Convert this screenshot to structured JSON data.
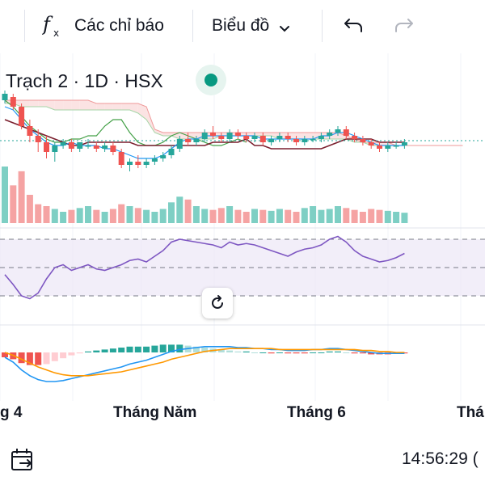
{
  "toolbar": {
    "indicators_label": "Các chỉ báo",
    "chart_type_label": "Biểu đồ",
    "icons": [
      "fx-icon",
      "chevron-down-icon",
      "undo-icon",
      "redo-icon"
    ]
  },
  "legend": {
    "symbol_text": "Trạch 2 · 1D · HSX",
    "status_color": "#089981"
  },
  "x_axis": {
    "labels": [
      "g 4",
      "Tháng Năm",
      "Tháng 6",
      "Thá"
    ]
  },
  "bottom": {
    "time_text": "14:56:29 (",
    "icons": [
      "calendar-arrow-icon"
    ]
  },
  "colors": {
    "up": "#26a69a",
    "down": "#ef5350",
    "rsi": "#7e57c2",
    "macd": "#2196f3",
    "signal": "#ff9800",
    "kijun": "#7b1f2e",
    "chikou": "#43a047",
    "tenkan": "#2196f3"
  },
  "chart_data": [
    {
      "type": "candlestick",
      "title": "",
      "candles": [
        [
          58,
          61,
          57,
          60
        ],
        [
          59,
          60,
          55,
          56
        ],
        [
          56,
          57,
          49,
          50
        ],
        [
          50,
          52,
          45,
          47
        ],
        [
          47,
          49,
          42,
          45
        ],
        [
          45,
          47,
          40,
          42
        ],
        [
          42,
          45,
          39,
          44
        ],
        [
          44,
          46,
          43,
          45
        ],
        [
          45,
          46,
          42,
          43
        ],
        [
          43,
          45,
          42,
          45
        ],
        [
          44,
          46,
          43,
          44
        ],
        [
          44,
          45,
          42,
          43
        ],
        [
          43,
          45,
          42,
          44
        ],
        [
          44,
          45,
          41,
          42
        ],
        [
          42,
          43,
          37,
          38
        ],
        [
          38,
          40,
          36,
          39
        ],
        [
          39,
          41,
          37,
          38
        ],
        [
          38,
          40,
          37,
          39
        ],
        [
          39,
          41,
          38,
          40
        ],
        [
          40,
          42,
          39,
          41
        ],
        [
          41,
          44,
          40,
          43
        ],
        [
          43,
          47,
          42,
          46
        ],
        [
          46,
          48,
          44,
          45
        ],
        [
          45,
          47,
          44,
          46
        ],
        [
          46,
          49,
          45,
          48
        ],
        [
          48,
          50,
          46,
          47
        ],
        [
          47,
          48,
          45,
          46
        ],
        [
          46,
          49,
          45,
          48
        ],
        [
          48,
          49,
          46,
          47
        ],
        [
          47,
          48,
          45,
          46
        ],
        [
          46,
          48,
          45,
          47
        ],
        [
          47,
          48,
          44,
          45
        ],
        [
          45,
          47,
          44,
          46
        ],
        [
          46,
          48,
          45,
          47
        ],
        [
          47,
          48,
          45,
          46
        ],
        [
          46,
          47,
          44,
          45
        ],
        [
          45,
          47,
          44,
          46
        ],
        [
          46,
          47,
          45,
          46
        ],
        [
          46,
          48,
          45,
          47
        ],
        [
          47,
          49,
          46,
          48
        ],
        [
          48,
          50,
          47,
          49
        ],
        [
          49,
          50,
          46,
          47
        ],
        [
          47,
          48,
          45,
          46
        ],
        [
          46,
          47,
          44,
          45
        ],
        [
          45,
          46,
          43,
          44
        ],
        [
          44,
          45,
          42,
          43
        ],
        [
          43,
          45,
          42,
          44
        ],
        [
          44,
          45,
          43,
          44
        ],
        [
          44,
          46,
          43,
          45
        ]
      ],
      "volume": [
        60,
        40,
        55,
        30,
        20,
        18,
        15,
        12,
        14,
        16,
        18,
        14,
        12,
        15,
        20,
        18,
        16,
        14,
        12,
        15,
        22,
        28,
        25,
        18,
        15,
        14,
        16,
        18,
        14,
        12,
        15,
        14,
        13,
        15,
        14,
        12,
        16,
        18,
        14,
        15,
        18,
        16,
        14,
        12,
        15,
        14,
        13,
        12,
        11
      ],
      "rsi": [
        45,
        38,
        30,
        28,
        32,
        42,
        50,
        52,
        48,
        50,
        52,
        49,
        48,
        50,
        52,
        55,
        56,
        54,
        58,
        62,
        68,
        70,
        69,
        68,
        67,
        66,
        64,
        68,
        66,
        67,
        66,
        64,
        62,
        60,
        58,
        61,
        63,
        64,
        66,
        70,
        72,
        68,
        62,
        58,
        56,
        54,
        55,
        57,
        60
      ],
      "macd": {
        "macd": [
          -0.5,
          -1,
          -1.8,
          -2.4,
          -2.8,
          -3,
          -3,
          -2.9,
          -2.7,
          -2.5,
          -2.3,
          -2.1,
          -1.9,
          -1.7,
          -1.5,
          -1.2,
          -1,
          -0.8,
          -0.5,
          -0.2,
          0.1,
          0.3,
          0.4,
          0.5,
          0.6,
          0.6,
          0.6,
          0.6,
          0.5,
          0.5,
          0.4,
          0.4,
          0.3,
          0.3,
          0.2,
          0.2,
          0.2,
          0.3,
          0.3,
          0.4,
          0.4,
          0.3,
          0.2,
          0.1,
          0,
          -0.1,
          -0.1,
          -0.1,
          -0.1
        ],
        "signal": [
          0,
          -0.3,
          -0.7,
          -1.1,
          -1.5,
          -1.8,
          -2.1,
          -2.3,
          -2.4,
          -2.4,
          -2.4,
          -2.3,
          -2.2,
          -2.1,
          -2,
          -1.8,
          -1.6,
          -1.4,
          -1.2,
          -1,
          -0.7,
          -0.5,
          -0.3,
          -0.1,
          0.1,
          0.2,
          0.3,
          0.4,
          0.4,
          0.4,
          0.4,
          0.4,
          0.4,
          0.3,
          0.3,
          0.3,
          0.3,
          0.3,
          0.3,
          0.3,
          0.3,
          0.3,
          0.3,
          0.2,
          0.2,
          0.1,
          0.1,
          0,
          0
        ],
        "histogram": [
          -0.5,
          -0.7,
          -1.1,
          -1.3,
          -1.3,
          -1.2,
          -0.9,
          -0.6,
          -0.3,
          -0.1,
          0.1,
          0.2,
          0.3,
          0.4,
          0.5,
          0.6,
          0.6,
          0.6,
          0.7,
          0.8,
          0.8,
          0.8,
          0.7,
          0.6,
          0.5,
          0.4,
          0.3,
          0.2,
          0.1,
          0.1,
          0,
          0,
          -0.1,
          0,
          -0.1,
          -0.1,
          -0.1,
          0,
          0,
          0.1,
          0.1,
          0,
          -0.1,
          -0.1,
          -0.2,
          -0.2,
          -0.2,
          -0.1,
          -0.1
        ]
      },
      "ichimoku": {
        "tenkan": [
          56,
          55,
          52,
          49,
          47,
          45,
          44,
          44,
          45,
          44,
          44,
          44,
          43,
          43,
          42,
          41,
          40,
          40,
          40,
          41,
          43,
          45,
          46,
          46,
          47,
          47,
          47,
          47,
          47,
          47,
          47,
          46,
          46,
          46,
          46,
          46,
          46,
          46,
          47,
          47,
          48,
          48,
          47,
          46,
          45,
          44,
          44,
          44,
          44
        ],
        "kijun": [
          52,
          51,
          50,
          49,
          48,
          47,
          46,
          45,
          44,
          44,
          45,
          45,
          45,
          45,
          45,
          45,
          44,
          44,
          44,
          44,
          44,
          44,
          44,
          44,
          44,
          45,
          45,
          45,
          45,
          46,
          44,
          44,
          43,
          43,
          43,
          43,
          43,
          43,
          43,
          44,
          45,
          46,
          46,
          46,
          46,
          45,
          45,
          45,
          45
        ],
        "chikou": [
          58,
          56,
          53,
          50,
          48,
          46,
          45,
          45,
          46,
          46,
          47,
          47,
          50,
          52,
          52,
          48,
          45,
          44,
          44,
          45,
          47,
          48,
          47,
          46,
          45,
          44,
          44,
          45,
          46,
          45
        ],
        "span_a": [
          57,
          57,
          56,
          56,
          56,
          56,
          55,
          55,
          55,
          55,
          55,
          55,
          55,
          55,
          55,
          55,
          54,
          52,
          48,
          47,
          47,
          46,
          46,
          46,
          46,
          46,
          47,
          47,
          47,
          47,
          47,
          47,
          47,
          46,
          46,
          46,
          46,
          46,
          46,
          46,
          46,
          46,
          45,
          45,
          44,
          44,
          44,
          44,
          44,
          44,
          44,
          44,
          44,
          44,
          44,
          44
        ],
        "span_b": [
          58,
          58,
          58,
          58,
          58,
          58,
          58,
          58,
          58,
          58,
          58,
          57,
          57,
          57,
          57,
          57,
          57,
          56,
          49,
          48,
          48,
          48,
          48,
          48,
          48,
          48,
          48,
          48,
          48,
          48,
          48,
          48,
          48,
          48,
          48,
          48,
          48,
          48,
          48,
          48,
          48,
          47,
          46,
          45,
          45,
          45,
          45,
          44,
          44,
          44,
          44,
          44,
          44,
          44,
          44,
          44
        ]
      },
      "price_line": 45.5
    }
  ]
}
